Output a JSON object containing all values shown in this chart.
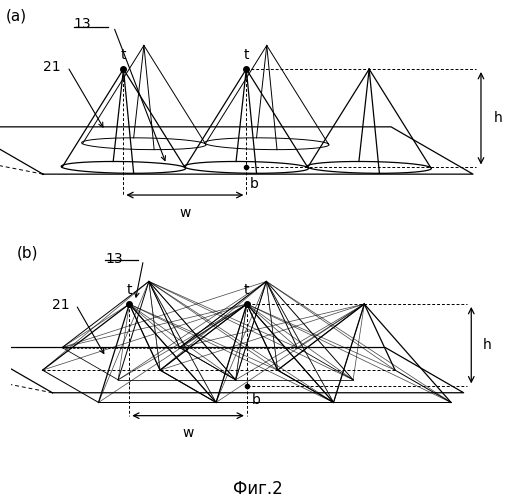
{
  "figure_label_a": "(a)",
  "figure_label_b": "(b)",
  "figure_caption": "Фиг.2",
  "label_13": "13",
  "label_21": "21",
  "label_t": "t",
  "label_b": "b",
  "label_h": "h",
  "label_w": "w",
  "bg_color": "#ffffff",
  "line_color": "#000000",
  "fontsize_small": 9,
  "fontsize_caption": 12
}
